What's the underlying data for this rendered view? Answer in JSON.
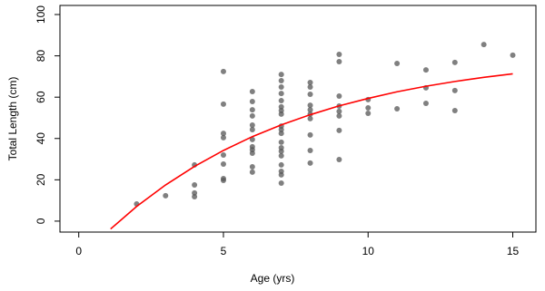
{
  "chart_data": {
    "type": "scatter",
    "x_label": "Age (yrs)",
    "y_label": "Total Length (cm)",
    "xlim": [
      -0.65,
      15.8
    ],
    "ylim": [
      -5.3,
      104.4
    ],
    "xticks": [
      0,
      5,
      10,
      15
    ],
    "yticks": [
      0,
      20,
      40,
      60,
      80,
      100
    ],
    "series": [
      {
        "type": "scatter",
        "color": "#555555",
        "x": [
          2,
          3,
          4,
          4,
          4,
          4,
          5,
          5,
          5,
          5,
          5,
          5,
          5,
          5,
          6,
          6,
          6,
          6,
          6,
          6,
          6,
          6,
          6,
          6,
          6,
          6,
          7,
          7,
          7,
          7,
          7,
          7,
          7,
          7,
          7,
          7,
          7,
          7,
          7,
          7,
          7,
          7,
          7,
          7,
          7,
          8,
          8,
          8,
          8,
          8,
          8,
          8,
          8,
          8,
          8,
          9,
          9,
          9,
          9,
          9,
          9,
          9,
          9,
          10,
          10,
          10,
          11,
          11,
          12,
          12,
          12,
          13,
          13,
          13,
          14,
          15
        ],
        "values": [
          8.3,
          12.3,
          27.2,
          17.5,
          13.6,
          11.8,
          72.4,
          56.6,
          42.5,
          40.4,
          32,
          27.6,
          20.6,
          19.7,
          62.7,
          57.9,
          53.9,
          50.9,
          46.5,
          44.3,
          39.5,
          36,
          34.6,
          32.9,
          26.3,
          23.7,
          71,
          68,
          64.9,
          61.8,
          58.3,
          55.3,
          53.5,
          51.8,
          46,
          44.3,
          42.5,
          38.2,
          35.5,
          33.8,
          31.6,
          27.2,
          24.1,
          22.4,
          18.4,
          67.1,
          64.9,
          61.4,
          56.1,
          53.9,
          51.8,
          49.6,
          41.7,
          34.2,
          28.1,
          80.7,
          77.2,
          60.5,
          55.7,
          53.1,
          50.9,
          43.9,
          29.8,
          58.8,
          54.8,
          52.2,
          76.3,
          54.4,
          73.2,
          64.5,
          57,
          76.8,
          63.2,
          53.5,
          85.5,
          80.3
        ]
      },
      {
        "type": "line",
        "color": "#ff0000",
        "x": [
          1.1,
          2,
          3,
          4,
          5,
          6,
          7,
          8,
          9,
          10,
          11,
          12,
          13,
          14,
          15
        ],
        "values": [
          -3.8,
          7.1,
          17.5,
          26.5,
          34.2,
          40.9,
          46.6,
          51.5,
          55.8,
          59.4,
          62.6,
          65.3,
          67.6,
          69.6,
          71.3
        ]
      }
    ]
  }
}
